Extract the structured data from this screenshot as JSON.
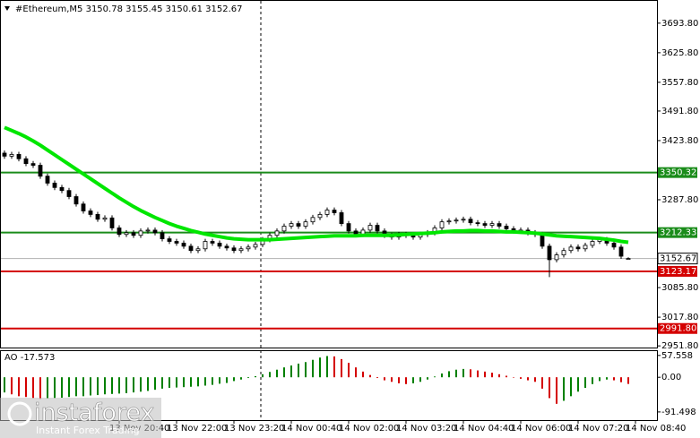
{
  "header": "#Ethereum,M5  3150.78 3155.45 3150.61 3152.67",
  "watermark": {
    "brand": "instaforex",
    "tagline": "Instant Forex Trading"
  },
  "chart_data": [
    {
      "type": "candlestick",
      "categories": [
        null,
        null,
        null,
        null,
        null,
        null,
        null,
        null,
        null,
        null,
        null,
        null,
        null,
        null,
        null,
        null,
        "13 Nov 20:40",
        null,
        null,
        null,
        null,
        null,
        null,
        null,
        "13 Nov 22:00",
        null,
        null,
        null,
        null,
        null,
        null,
        null,
        "13 Nov 23:20",
        null,
        null,
        null,
        null,
        null,
        null,
        null,
        "14 Nov 00:40",
        null,
        null,
        null,
        null,
        null,
        null,
        null,
        "14 Nov 02:00",
        null,
        null,
        null,
        null,
        null,
        null,
        null,
        "14 Nov 03:20",
        null,
        null,
        null,
        null,
        null,
        null,
        null,
        "14 Nov 04:40",
        null,
        null,
        null,
        null,
        null,
        null,
        null,
        "14 Nov 06:00",
        null,
        null,
        null,
        null,
        null,
        null,
        null,
        "14 Nov 07:20",
        null,
        null,
        null,
        null,
        null,
        null,
        null,
        "14 Nov 08:40"
      ],
      "open": [
        3395,
        3388,
        3392,
        3382,
        3371,
        3367,
        3342,
        3326,
        3316,
        3309,
        3295,
        3278,
        3262,
        3254,
        3243,
        3246,
        3223,
        3208,
        3212,
        3206,
        3216,
        3218,
        3212,
        3198,
        3192,
        3188,
        3181,
        3171,
        3175,
        3192,
        3188,
        3181,
        3177,
        3171,
        3175,
        3179,
        3185,
        3196,
        3206,
        3216,
        3227,
        3233,
        3227,
        3237,
        3247,
        3254,
        3264,
        3258,
        3233,
        3216,
        3208,
        3218,
        3229,
        3216,
        3206,
        3202,
        3208,
        3206,
        3202,
        3208,
        3212,
        3223,
        3237,
        3239,
        3241,
        3243,
        3235,
        3233,
        3229,
        3233,
        3227,
        3221,
        3216,
        3218,
        3212,
        3208,
        3181,
        3150,
        3161,
        3171,
        3179,
        3175,
        3183,
        3192,
        3196,
        3188,
        3179,
        3150.78,
        null
      ],
      "high": [
        3401,
        3398,
        3398,
        3388,
        3377,
        3373,
        3348,
        3332,
        3322,
        3315,
        3301,
        3284,
        3268,
        3260,
        3252,
        3252,
        3229,
        3218,
        3218,
        3222,
        3224,
        3224,
        3218,
        3204,
        3198,
        3194,
        3187,
        3181,
        3198,
        3198,
        3194,
        3187,
        3183,
        3181,
        3185,
        3191,
        3202,
        3212,
        3222,
        3233,
        3239,
        3239,
        3243,
        3253,
        3260,
        3270,
        3270,
        3264,
        3239,
        3222,
        3224,
        3235,
        3235,
        3222,
        3212,
        3214,
        3214,
        3212,
        3214,
        3218,
        3229,
        3243,
        3245,
        3247,
        3249,
        3249,
        3241,
        3239,
        3239,
        3239,
        3233,
        3227,
        3224,
        3224,
        3218,
        3214,
        3187,
        3167,
        3177,
        3185,
        3185,
        3189,
        3198,
        3202,
        3202,
        3194,
        3185,
        3155.45,
        null
      ],
      "low": [
        3382,
        3382,
        3376,
        3365,
        3361,
        3336,
        3320,
        3310,
        3303,
        3289,
        3272,
        3256,
        3248,
        3237,
        3237,
        3217,
        3202,
        3202,
        3200,
        3200,
        3210,
        3206,
        3192,
        3186,
        3182,
        3175,
        3165,
        3165,
        3169,
        3182,
        3175,
        3171,
        3165,
        3165,
        3169,
        3173,
        3179,
        3190,
        3200,
        3210,
        3221,
        3221,
        3221,
        3231,
        3241,
        3248,
        3252,
        3227,
        3210,
        3202,
        3202,
        3212,
        3210,
        3200,
        3196,
        3196,
        3200,
        3196,
        3196,
        3202,
        3206,
        3217,
        3231,
        3233,
        3235,
        3229,
        3227,
        3223,
        3223,
        3221,
        3215,
        3210,
        3210,
        3206,
        3202,
        3175,
        3110,
        3144,
        3155,
        3165,
        3169,
        3169,
        3177,
        3186,
        3182,
        3173,
        3152,
        3150.61,
        null
      ],
      "close": [
        3388,
        3392,
        3382,
        3371,
        3367,
        3342,
        3326,
        3316,
        3309,
        3295,
        3278,
        3262,
        3254,
        3243,
        3246,
        3223,
        3208,
        3212,
        3206,
        3216,
        3218,
        3212,
        3198,
        3192,
        3188,
        3181,
        3171,
        3175,
        3192,
        3188,
        3181,
        3177,
        3171,
        3175,
        3179,
        3185,
        3196,
        3206,
        3216,
        3227,
        3233,
        3227,
        3237,
        3247,
        3254,
        3264,
        3258,
        3233,
        3216,
        3208,
        3218,
        3229,
        3216,
        3206,
        3202,
        3208,
        3206,
        3202,
        3208,
        3212,
        3223,
        3237,
        3239,
        3241,
        3243,
        3235,
        3233,
        3229,
        3233,
        3227,
        3221,
        3216,
        3218,
        3212,
        3208,
        3181,
        3150,
        3161,
        3171,
        3179,
        3175,
        3183,
        3192,
        3196,
        3188,
        3179,
        3158,
        3152.67,
        null
      ],
      "moving_average": {
        "color": "#00e600",
        "values": [
          3454,
          3447,
          3440,
          3432,
          3423,
          3413,
          3402,
          3391,
          3380,
          3369,
          3358,
          3347,
          3336,
          3325,
          3314,
          3303,
          3292,
          3282,
          3272,
          3263,
          3255,
          3247,
          3240,
          3233,
          3227,
          3222,
          3217,
          3213,
          3209,
          3206,
          3203,
          3200,
          3198,
          3197,
          3196,
          3196,
          3196,
          3196,
          3197,
          3198,
          3199,
          3200,
          3201,
          3202,
          3203,
          3204,
          3205,
          3205,
          3205,
          3205,
          3206,
          3206,
          3206,
          3206,
          3206,
          3207,
          3208,
          3209,
          3210,
          3211,
          3212,
          3214,
          3215,
          3216,
          3216,
          3217,
          3217,
          3216,
          3216,
          3215,
          3214,
          3214,
          3213,
          3212,
          3211,
          3209,
          3207,
          3205,
          3204,
          3203,
          3202,
          3201,
          3200,
          3199,
          3197,
          3195,
          3192,
          3190,
          null
        ]
      },
      "levels": [
        {
          "value": 3350.32,
          "color": "#1a8c1a"
        },
        {
          "value": 3212.33,
          "color": "#1a8c1a"
        },
        {
          "value": 3123.17,
          "color": "#d40000"
        },
        {
          "value": 2991.8,
          "label": "2991.80",
          "color": "#d40000"
        }
      ],
      "current_price": 3152.67,
      "ylim": [
        2948,
        3745
      ],
      "yticks": [
        {
          "value": 3693.8,
          "label": "3693.80"
        },
        {
          "value": 3625.8,
          "label": "3625.80"
        },
        {
          "value": 3557.8,
          "label": "3557.80"
        },
        {
          "value": 3491.8,
          "label": "3491.80"
        },
        {
          "value": 3423.8,
          "label": "3423.80"
        },
        {
          "value": 3287.8,
          "label": "3287.80"
        },
        {
          "value": 3085.8,
          "label": "3085.80"
        },
        {
          "value": 3017.8,
          "label": "3017.80"
        },
        {
          "value": 2951.8,
          "label": "2951.80"
        }
      ]
    },
    {
      "type": "histogram",
      "label": "AO -17.573",
      "up_color": "#008000",
      "down_color": "#d40000",
      "values": [
        -40,
        -45,
        -50,
        -52,
        -55,
        -57,
        -56,
        -55,
        -54,
        -52,
        -50,
        -50,
        -48,
        -47,
        -45,
        -44,
        -43,
        -42,
        -40,
        -38,
        -36,
        -33,
        -30,
        -28,
        -27,
        -26,
        -25,
        -24,
        -22,
        -20,
        -17,
        -15,
        -10,
        -6,
        -2,
        3,
        8,
        14,
        20,
        26,
        31,
        36,
        40,
        46,
        52,
        56,
        55,
        48,
        38,
        26,
        15,
        6,
        -2,
        -8,
        -12,
        -16,
        -18,
        -16,
        -12,
        -6,
        2,
        10,
        16,
        20,
        22,
        21,
        18,
        15,
        12,
        8,
        4,
        0,
        -4,
        -8,
        -12,
        -30,
        -55,
        -70,
        -62,
        -50,
        -38,
        -28,
        -18,
        -10,
        -6,
        -8,
        -13,
        -17.573,
        null
      ],
      "ylim": [
        -113,
        69
      ],
      "yticks": [
        57.558,
        {
          "value": 0,
          "label": "0.00"
        },
        -91.498
      ]
    }
  ]
}
